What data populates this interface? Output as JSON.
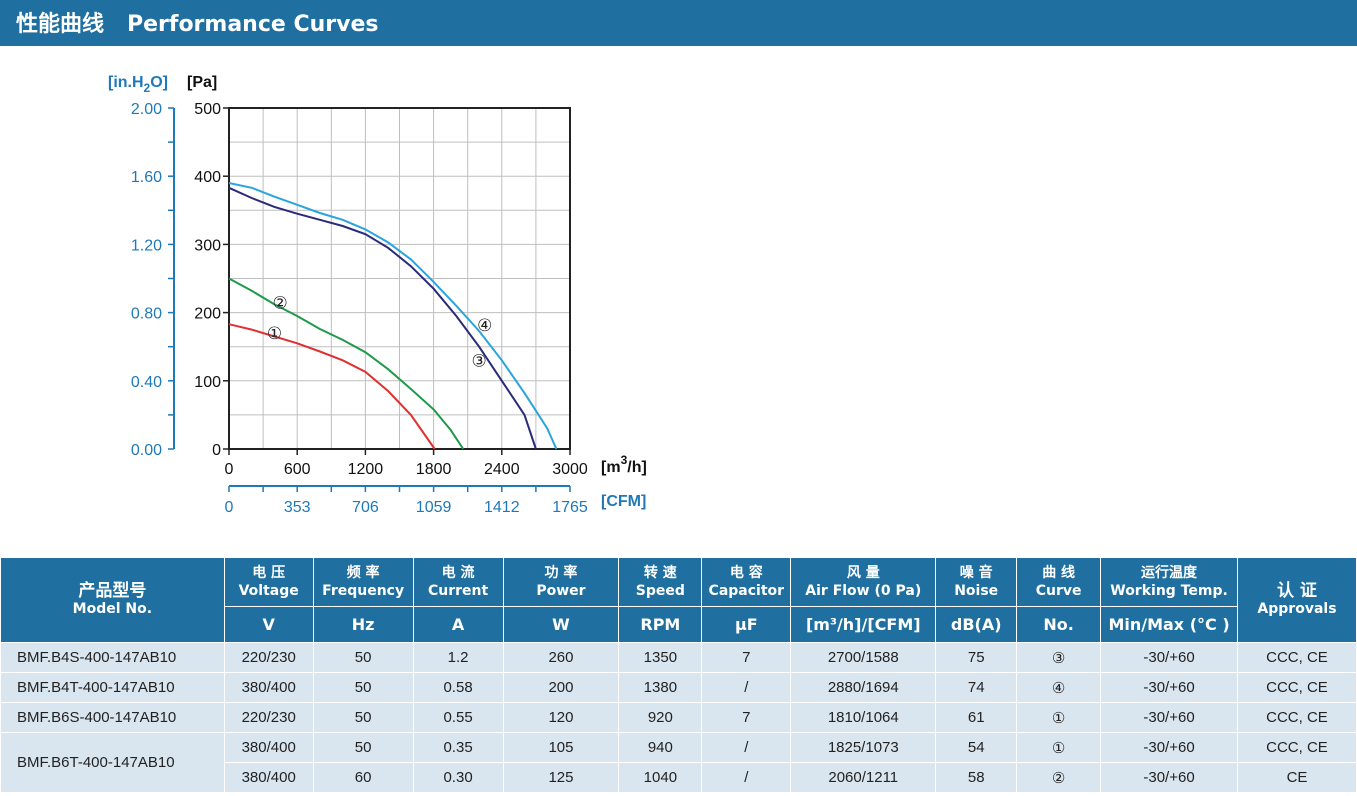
{
  "header": {
    "title": "性能曲线   Performance Curves"
  },
  "chart_data": {
    "type": "line",
    "y_left_label": "[in.H2O]",
    "y_right_label": "[Pa]",
    "x_top_label": "[m³/h]",
    "x_bottom_label": "[CFM]",
    "x_ticks": [
      "0",
      "600",
      "1200",
      "1800",
      "2400",
      "3000"
    ],
    "x_cfm_ticks": [
      "0",
      "353",
      "706",
      "1059",
      "1412",
      "1765"
    ],
    "y_pa_ticks": [
      "0",
      "100",
      "200",
      "300",
      "400",
      "500"
    ],
    "y_inh2o_ticks": [
      "0.00",
      "0.40",
      "0.80",
      "1.20",
      "1.60",
      "2.00"
    ],
    "xlim": [
      0,
      3000
    ],
    "ylim": [
      0,
      500
    ],
    "grid": true,
    "series": [
      {
        "name": "①",
        "color": "#e03030",
        "label_at": [
          400,
          170
        ],
        "points": [
          [
            0,
            183
          ],
          [
            200,
            175
          ],
          [
            400,
            165
          ],
          [
            600,
            155
          ],
          [
            800,
            143
          ],
          [
            1000,
            130
          ],
          [
            1200,
            113
          ],
          [
            1400,
            85
          ],
          [
            1600,
            50
          ],
          [
            1810,
            0
          ]
        ]
      },
      {
        "name": "②",
        "color": "#1e9a4a",
        "label_at": [
          450,
          215
        ],
        "points": [
          [
            0,
            250
          ],
          [
            200,
            232
          ],
          [
            400,
            212
          ],
          [
            600,
            195
          ],
          [
            800,
            176
          ],
          [
            1000,
            160
          ],
          [
            1200,
            142
          ],
          [
            1400,
            117
          ],
          [
            1600,
            88
          ],
          [
            1800,
            58
          ],
          [
            1950,
            28
          ],
          [
            2060,
            0
          ]
        ]
      },
      {
        "name": "③",
        "color": "#2a2a7a",
        "label_at": [
          2200,
          130
        ],
        "points": [
          [
            0,
            383
          ],
          [
            200,
            368
          ],
          [
            400,
            355
          ],
          [
            600,
            345
          ],
          [
            800,
            336
          ],
          [
            1000,
            327
          ],
          [
            1200,
            315
          ],
          [
            1400,
            295
          ],
          [
            1600,
            268
          ],
          [
            1800,
            235
          ],
          [
            2000,
            195
          ],
          [
            2200,
            150
          ],
          [
            2400,
            100
          ],
          [
            2600,
            50
          ],
          [
            2700,
            0
          ]
        ]
      },
      {
        "name": "④",
        "color": "#2aa4de",
        "label_at": [
          2250,
          182
        ],
        "points": [
          [
            0,
            390
          ],
          [
            200,
            383
          ],
          [
            400,
            370
          ],
          [
            600,
            358
          ],
          [
            800,
            346
          ],
          [
            1000,
            336
          ],
          [
            1200,
            322
          ],
          [
            1400,
            303
          ],
          [
            1600,
            278
          ],
          [
            1800,
            245
          ],
          [
            2000,
            210
          ],
          [
            2200,
            173
          ],
          [
            2400,
            130
          ],
          [
            2600,
            82
          ],
          [
            2800,
            30
          ],
          [
            2880,
            0
          ]
        ]
      }
    ]
  },
  "table": {
    "headers": [
      {
        "cn": "产品型号",
        "en": "Model No."
      },
      {
        "cn": "电 压",
        "en": "Voltage",
        "unit": "V"
      },
      {
        "cn": "频 率",
        "en": "Frequency",
        "unit": "Hz"
      },
      {
        "cn": "电 流",
        "en": "Current",
        "unit": "A"
      },
      {
        "cn": "功 率",
        "en": "Power",
        "unit": "W"
      },
      {
        "cn": "转 速",
        "en": "Speed",
        "unit": "RPM"
      },
      {
        "cn": "电 容",
        "en": "Capacitor",
        "unit": "μF"
      },
      {
        "cn": "风 量",
        "en": "Air Flow (0 Pa)",
        "unit": "[m³/h]/[CFM]"
      },
      {
        "cn": "噪 音",
        "en": "Noise",
        "unit": "dB(A)"
      },
      {
        "cn": "曲 线",
        "en": "Curve",
        "unit": "No."
      },
      {
        "cn": "运行温度",
        "en": "Working Temp.",
        "unit": "Min/Max (°C )"
      },
      {
        "cn": "认 证",
        "en": "Approvals"
      }
    ],
    "rows": [
      {
        "model": "BMF.B4S-400-147AB10",
        "cells": [
          "220/230",
          "50",
          "1.2",
          "260",
          "1350",
          "7",
          "2700/1588",
          "75",
          "③",
          "-30/+60",
          "CCC, CE"
        ]
      },
      {
        "model": "BMF.B4T-400-147AB10",
        "cells": [
          "380/400",
          "50",
          "0.58",
          "200",
          "1380",
          "/",
          "2880/1694",
          "74",
          "④",
          "-30/+60",
          "CCC, CE"
        ]
      },
      {
        "model": "BMF.B6S-400-147AB10",
        "cells": [
          "220/230",
          "50",
          "0.55",
          "120",
          "920",
          "7",
          "1810/1064",
          "61",
          "①",
          "-30/+60",
          "CCC, CE"
        ]
      },
      {
        "model": "BMF.B6T-400-147AB10",
        "cells": [
          "380/400",
          "50",
          "0.35",
          "105",
          "940",
          "/",
          "1825/1073",
          "54",
          "①",
          "-30/+60",
          "CCC, CE"
        ]
      },
      {
        "model": "",
        "cells": [
          "380/400",
          "60",
          "0.30",
          "125",
          "1040",
          "/",
          "2060/1211",
          "58",
          "②",
          "-30/+60",
          "CE"
        ]
      }
    ]
  }
}
